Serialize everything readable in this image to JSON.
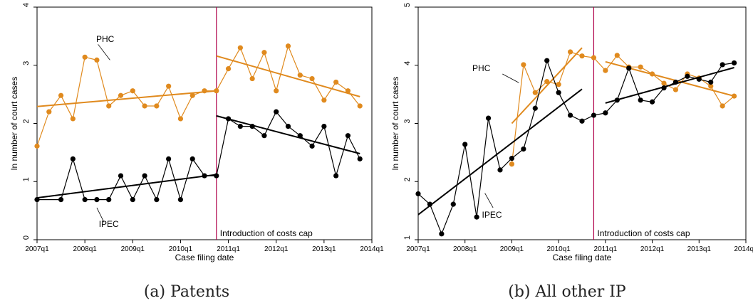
{
  "chart_data": [
    {
      "type": "line",
      "caption": "(a) Patents",
      "xlabel": "Case filing date",
      "ylabel": "ln number of court cases",
      "x_ticks": [
        "2007q1",
        "2008q1",
        "2009q1",
        "2010q1",
        "2011q1",
        "2012q1",
        "2013q1",
        "2014q1"
      ],
      "y_ticks": [
        "0",
        "1",
        "2",
        "3",
        "4"
      ],
      "xlim": [
        0,
        28
      ],
      "ylim": [
        0,
        4
      ],
      "grid": false,
      "vline": {
        "x": 15,
        "color": "#b0004a",
        "label": "Introduction of costs cap"
      },
      "series": [
        {
          "name": "PHC",
          "color": "#e08a1e",
          "x": [
            0,
            1,
            2,
            3,
            4,
            5,
            6,
            7,
            8,
            9,
            10,
            11,
            12,
            13,
            14,
            15,
            16,
            17,
            18,
            19,
            20,
            21,
            22,
            23,
            24,
            25,
            26,
            27
          ],
          "values": [
            1.61,
            2.2,
            2.48,
            2.08,
            3.14,
            3.09,
            2.3,
            2.48,
            2.56,
            2.3,
            2.3,
            2.64,
            2.08,
            2.48,
            2.56,
            2.56,
            2.94,
            3.3,
            2.77,
            3.22,
            2.56,
            3.33,
            2.83,
            2.77,
            2.4,
            2.71,
            2.56,
            2.3
          ],
          "fits": [
            {
              "x": [
                0,
                15
              ],
              "y": [
                2.29,
                2.56
              ]
            },
            {
              "x": [
                15,
                27
              ],
              "y": [
                3.16,
                2.46
              ]
            }
          ]
        },
        {
          "name": "IPEC",
          "color": "#000000",
          "x": [
            0,
            2,
            3,
            4,
            5,
            6,
            7,
            8,
            9,
            10,
            11,
            12,
            13,
            14,
            15,
            16,
            17,
            18,
            19,
            20,
            21,
            22,
            23,
            24,
            25,
            26,
            27
          ],
          "values": [
            0.69,
            0.69,
            1.39,
            0.69,
            0.69,
            0.69,
            1.1,
            0.69,
            1.1,
            0.69,
            1.39,
            0.69,
            1.39,
            1.1,
            1.1,
            2.08,
            1.95,
            1.95,
            1.79,
            2.2,
            1.95,
            1.79,
            1.61,
            1.95,
            1.1,
            1.79,
            1.39
          ],
          "fits": [
            {
              "x": [
                0,
                15
              ],
              "y": [
                0.72,
                1.12
              ]
            },
            {
              "x": [
                15,
                27
              ],
              "y": [
                2.13,
                1.48
              ]
            }
          ]
        }
      ]
    },
    {
      "type": "line",
      "caption": "(b) All other IP",
      "xlabel": "Case filing date",
      "ylabel": "ln number of court cases",
      "x_ticks": [
        "2007q1",
        "2008q1",
        "2009q1",
        "2010q1",
        "2011q1",
        "2012q1",
        "2013q1",
        "2014q1"
      ],
      "y_ticks": [
        "1",
        "2",
        "3",
        "4",
        "5"
      ],
      "xlim": [
        0,
        28
      ],
      "ylim": [
        1,
        5
      ],
      "grid": false,
      "vline": {
        "x": 15,
        "color": "#b0004a",
        "label": "Introduction of costs cap"
      },
      "series": [
        {
          "name": "PHC",
          "color": "#e08a1e",
          "x": [
            8,
            9,
            10,
            11,
            12,
            13,
            14,
            15,
            16,
            17,
            18,
            19,
            20,
            21,
            22,
            23,
            24,
            25,
            26,
            27
          ],
          "values": [
            2.3,
            4.01,
            3.53,
            3.72,
            3.67,
            4.23,
            4.16,
            4.13,
            3.91,
            4.17,
            3.97,
            3.97,
            3.85,
            3.69,
            3.58,
            3.85,
            3.78,
            3.64,
            3.3,
            3.47
          ],
          "fits": [
            {
              "x": [
                8,
                14
              ],
              "y": [
                3.0,
                4.3
              ]
            },
            {
              "x": [
                16,
                27
              ],
              "y": [
                4.06,
                3.47
              ]
            }
          ]
        },
        {
          "name": "IPEC",
          "color": "#000000",
          "x": [
            0,
            1,
            2,
            3,
            4,
            5,
            6,
            7,
            8,
            9,
            10,
            11,
            12,
            13,
            14,
            15,
            16,
            17,
            18,
            19,
            20,
            21,
            22,
            23,
            24,
            25,
            26,
            27
          ],
          "values": [
            1.79,
            1.61,
            1.1,
            1.61,
            2.64,
            1.39,
            3.09,
            2.2,
            2.4,
            2.56,
            3.26,
            4.08,
            3.53,
            3.14,
            3.04,
            3.14,
            3.18,
            3.4,
            3.95,
            3.4,
            3.37,
            3.61,
            3.71,
            3.81,
            3.76,
            3.71,
            4.01,
            4.04
          ],
          "fits": [
            {
              "x": [
                0,
                14
              ],
              "y": [
                1.43,
                3.59
              ]
            },
            {
              "x": [
                16,
                27
              ],
              "y": [
                3.35,
                3.96
              ]
            }
          ]
        }
      ]
    }
  ]
}
